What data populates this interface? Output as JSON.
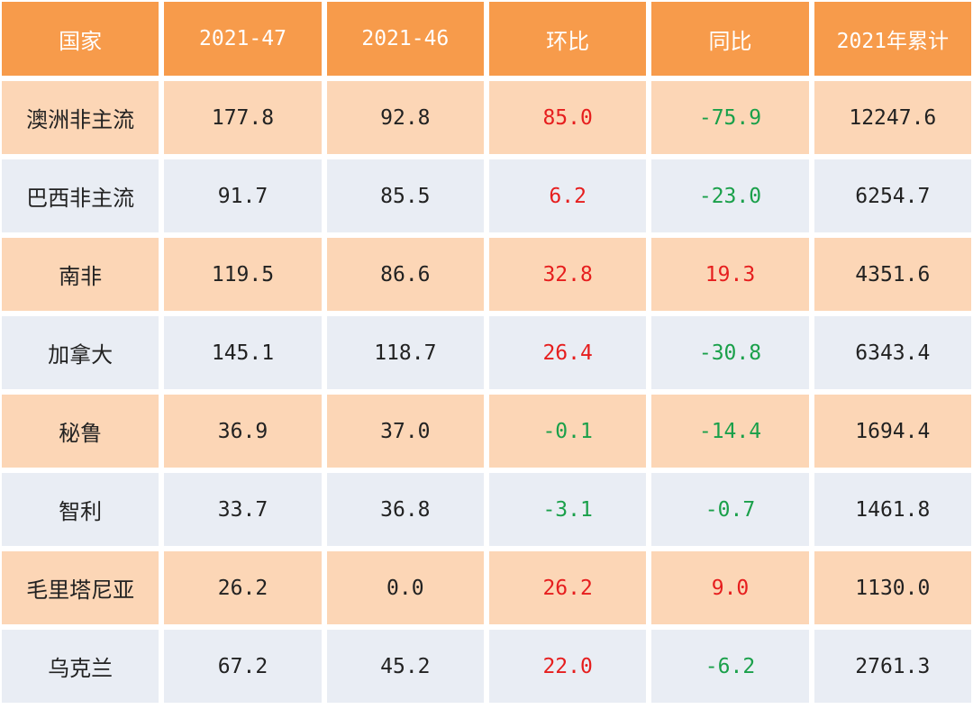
{
  "colors": {
    "header_bg": "#f79b4b",
    "row_odd_bg": "#fcd6b6",
    "row_even_bg": "#e9edf4",
    "positive": "#e61e1e",
    "negative": "#1aa04a"
  },
  "table": {
    "headers": [
      "国家",
      "2021-47",
      "2021-46",
      "环比",
      "同比",
      "2021年累计"
    ],
    "rows": [
      {
        "country": "澳洲非主流",
        "w47": "177.8",
        "w46": "92.8",
        "wow": "85.0",
        "yoy": "-75.9",
        "ytd": "12247.6"
      },
      {
        "country": "巴西非主流",
        "w47": "91.7",
        "w46": "85.5",
        "wow": "6.2",
        "yoy": "-23.0",
        "ytd": "6254.7"
      },
      {
        "country": "南非",
        "w47": "119.5",
        "w46": "86.6",
        "wow": "32.8",
        "yoy": "19.3",
        "ytd": "4351.6"
      },
      {
        "country": "加拿大",
        "w47": "145.1",
        "w46": "118.7",
        "wow": "26.4",
        "yoy": "-30.8",
        "ytd": "6343.4"
      },
      {
        "country": "秘鲁",
        "w47": "36.9",
        "w46": "37.0",
        "wow": "-0.1",
        "yoy": "-14.4",
        "ytd": "1694.4"
      },
      {
        "country": "智利",
        "w47": "33.7",
        "w46": "36.8",
        "wow": "-3.1",
        "yoy": "-0.7",
        "ytd": "1461.8"
      },
      {
        "country": "毛里塔尼亚",
        "w47": "26.2",
        "w46": "0.0",
        "wow": "26.2",
        "yoy": "9.0",
        "ytd": "1130.0"
      },
      {
        "country": "乌克兰",
        "w47": "67.2",
        "w46": "45.2",
        "wow": "22.0",
        "yoy": "-6.2",
        "ytd": "2761.3"
      }
    ]
  }
}
